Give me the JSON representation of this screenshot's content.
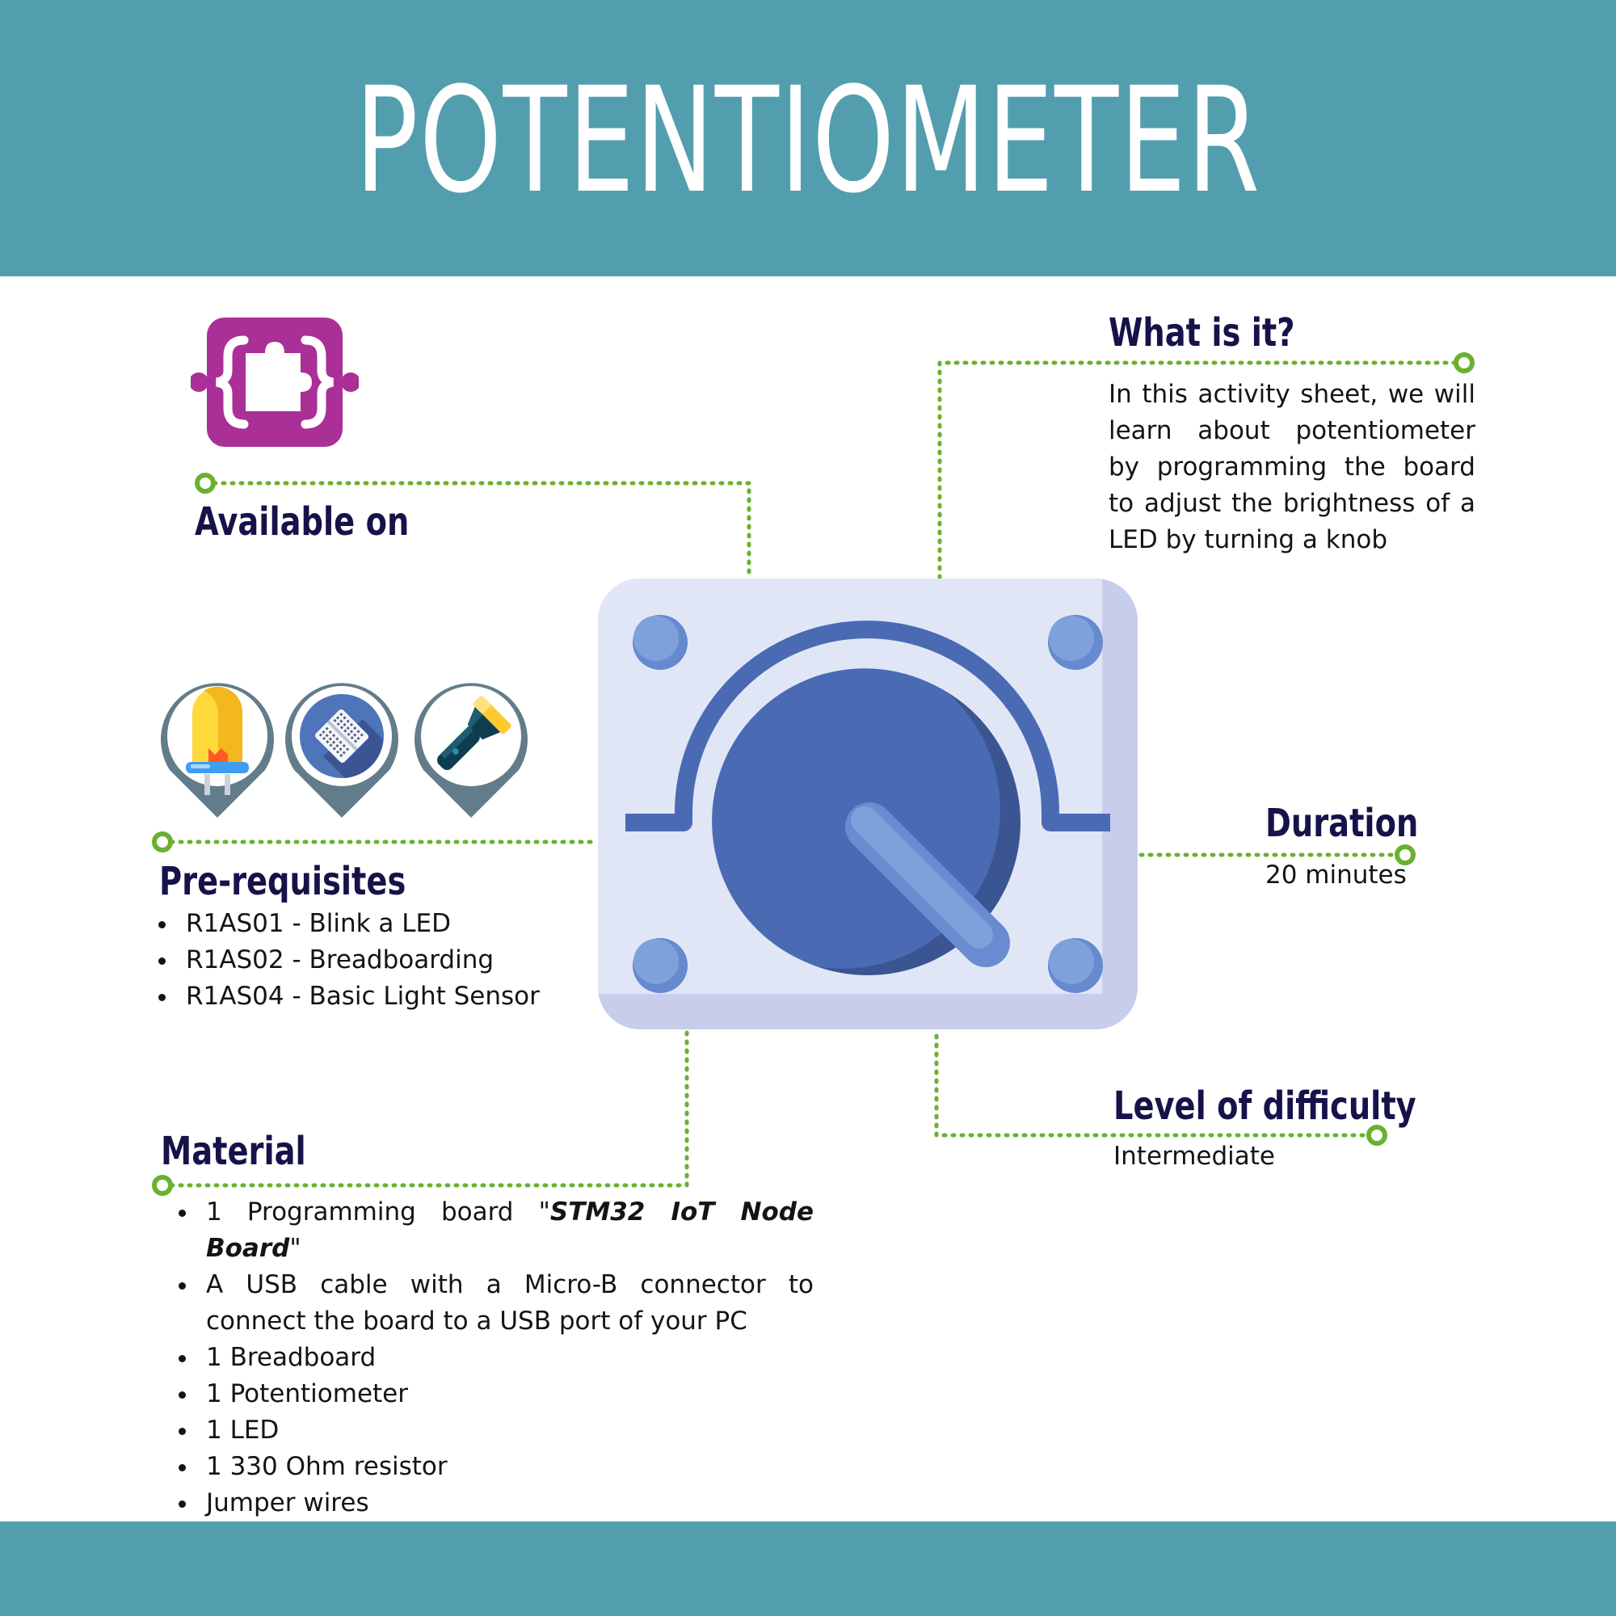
{
  "title": "POTENTIOMETER",
  "colors": {
    "band": "#529eae",
    "heading": "#16124a",
    "connector": "#6ab130",
    "logo": "#aa2f96",
    "knob": "#4a6ab4"
  },
  "available_on": {
    "heading": "Available on",
    "logo_icon": "puzzle-braces-logo"
  },
  "what_is_it": {
    "heading": "What is it?",
    "text": "In this activity sheet, we will learn about potentiometer by programming the board to adjust the brightness of a LED by turning a knob"
  },
  "prerequisites": {
    "heading": "Pre-requisites",
    "icons": [
      "led-icon",
      "breadboard-icon",
      "flashlight-icon"
    ],
    "items": [
      "R1AS01 - Blink a LED",
      "R1AS02 - Breadboarding",
      "R1AS04 - Basic Light Sensor"
    ]
  },
  "duration": {
    "heading": "Duration",
    "value": "20 minutes"
  },
  "difficulty": {
    "heading": "Level of difficulty",
    "value": "Intermediate"
  },
  "material": {
    "heading": "Material",
    "item1_prefix": "1 Programming board \"",
    "item1_board": "STM32 IoT Node Board",
    "item1_suffix": "\"",
    "items": [
      "A USB cable with a Micro-B connector to connect the board to a USB port of your PC",
      "1 Breadboard",
      "1 Potentiometer",
      "1 LED",
      "1 330 Ohm resistor",
      "Jumper wires"
    ]
  },
  "center_icon": "potentiometer-knob-icon"
}
